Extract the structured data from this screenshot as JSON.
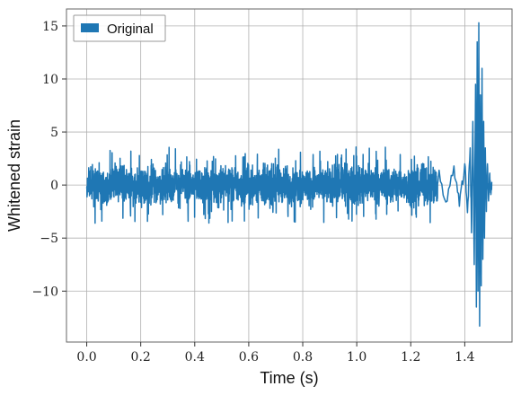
{
  "chart_data": {
    "type": "line",
    "title": "",
    "xlabel": "Time (s)",
    "ylabel": "Whitened strain",
    "xlim": [
      -0.075,
      1.575
    ],
    "ylim": [
      -14.8,
      16.6
    ],
    "xticks": [
      0.0,
      0.2,
      0.4,
      0.6,
      0.8,
      1.0,
      1.2,
      1.4
    ],
    "xtick_labels": [
      "0.0",
      "0.2",
      "0.4",
      "0.6",
      "0.8",
      "1.0",
      "1.2",
      "1.4"
    ],
    "yticks": [
      -10,
      -5,
      0,
      5,
      10,
      15
    ],
    "ytick_labels": [
      "−10",
      "−5",
      "0",
      "5",
      "10",
      "15"
    ],
    "grid": true,
    "legend_position": "top-left",
    "series": [
      {
        "name": "Original",
        "color": "#1f77b4",
        "x_start": 0.0,
        "x_end": 1.5,
        "noise_band": [
          -3.6,
          3.6
        ],
        "x": [
          1.3,
          1.33,
          1.36,
          1.38,
          1.4,
          1.41,
          1.42,
          1.425,
          1.43,
          1.435,
          1.44,
          1.443,
          1.446,
          1.449,
          1.452,
          1.455,
          1.458,
          1.461,
          1.464,
          1.467,
          1.47,
          1.473,
          1.476,
          1.48,
          1.484,
          1.488,
          1.492,
          1.496,
          1.5
        ],
        "y": [
          1.5,
          -1.6,
          1.8,
          -2.0,
          2.0,
          -2.6,
          3.5,
          -4.5,
          6.0,
          -7.5,
          9.5,
          -11.5,
          13.5,
          -10.0,
          15.3,
          -13.3,
          8.5,
          -9.5,
          11.0,
          -7.0,
          6.0,
          -5.0,
          3.5,
          -2.5,
          2.0,
          -1.5,
          1.0,
          -0.6,
          0.3
        ]
      }
    ]
  }
}
